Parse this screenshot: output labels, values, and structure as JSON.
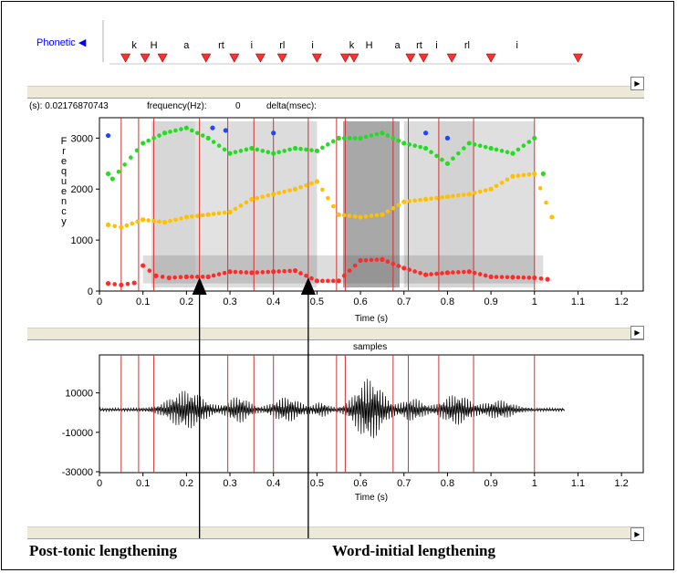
{
  "tier": {
    "label": "Phonetic",
    "segments": [
      "k",
      "H",
      "a",
      "rt",
      "i",
      "rl",
      "i",
      "k",
      "H",
      "a",
      "rt",
      "i",
      "rl",
      "i"
    ],
    "segment_times": [
      0.08,
      0.125,
      0.2,
      0.28,
      0.35,
      0.42,
      0.49,
      0.58,
      0.62,
      0.685,
      0.735,
      0.775,
      0.845,
      0.96
    ],
    "marker_times": [
      0.06,
      0.105,
      0.145,
      0.245,
      0.31,
      0.37,
      0.42,
      0.5,
      0.565,
      0.585,
      0.715,
      0.745,
      0.81,
      0.9,
      1.1
    ]
  },
  "readout": {
    "time": "(s): 0.02176870743",
    "frequency_label": "frequency(Hz):",
    "frequency_value": "0",
    "delta_label": "delta(msec):"
  },
  "spectrogram": {
    "ylabel": "Frequency",
    "yticks": [
      "0",
      "1000",
      "2000",
      "3000"
    ],
    "xticks": [
      "0",
      "0.1",
      "0.2",
      "0.3",
      "0.4",
      "0.5",
      "0.6",
      "0.7",
      "0.8",
      "0.9",
      "1",
      "1.1",
      "1.2"
    ],
    "xlabel": "Time (s)"
  },
  "waveform": {
    "title": "samples",
    "yticks": [
      "10000",
      "-10000",
      "-30000"
    ],
    "xticks": [
      "0",
      "0.1",
      "0.2",
      "0.3",
      "0.4",
      "0.5",
      "0.6",
      "0.7",
      "0.8",
      "0.9",
      "1",
      "1.1",
      "1.2"
    ],
    "xlabel": "Time (s)"
  },
  "boundaries": [
    0.05,
    0.09,
    0.125,
    0.23,
    0.295,
    0.355,
    0.4,
    0.48,
    0.545,
    0.565,
    0.675,
    0.71,
    0.78,
    0.86,
    1.0
  ],
  "formants": {
    "colors": {
      "F1": "#ff2a2a",
      "F2": "#ffc000",
      "F3": "#22dd22",
      "F4": "#2244ff"
    },
    "F1": [
      [
        0.02,
        150
      ],
      [
        0.05,
        120
      ],
      [
        0.08,
        160
      ],
      [
        0.1,
        500
      ],
      [
        0.13,
        300
      ],
      [
        0.16,
        260
      ],
      [
        0.2,
        280
      ],
      [
        0.25,
        280
      ],
      [
        0.3,
        380
      ],
      [
        0.35,
        360
      ],
      [
        0.4,
        380
      ],
      [
        0.45,
        400
      ],
      [
        0.5,
        200
      ],
      [
        0.55,
        200
      ],
      [
        0.6,
        600
      ],
      [
        0.65,
        620
      ],
      [
        0.7,
        450
      ],
      [
        0.75,
        320
      ],
      [
        0.8,
        360
      ],
      [
        0.85,
        380
      ],
      [
        0.9,
        280
      ],
      [
        0.95,
        270
      ],
      [
        1.0,
        260
      ],
      [
        1.03,
        230
      ]
    ],
    "F2": [
      [
        0.02,
        1300
      ],
      [
        0.05,
        1250
      ],
      [
        0.1,
        1400
      ],
      [
        0.15,
        1350
      ],
      [
        0.2,
        1450
      ],
      [
        0.25,
        1500
      ],
      [
        0.3,
        1550
      ],
      [
        0.35,
        1800
      ],
      [
        0.4,
        1900
      ],
      [
        0.45,
        2000
      ],
      [
        0.5,
        2150
      ],
      [
        0.55,
        1500
      ],
      [
        0.6,
        1450
      ],
      [
        0.65,
        1500
      ],
      [
        0.7,
        1750
      ],
      [
        0.75,
        1800
      ],
      [
        0.8,
        1850
      ],
      [
        0.85,
        1900
      ],
      [
        0.9,
        2000
      ],
      [
        0.95,
        2250
      ],
      [
        1.0,
        2300
      ],
      [
        1.04,
        1450
      ]
    ],
    "F3": [
      [
        0.02,
        2300
      ],
      [
        0.03,
        2200
      ],
      [
        0.1,
        2900
      ],
      [
        0.15,
        3100
      ],
      [
        0.2,
        3200
      ],
      [
        0.25,
        3000
      ],
      [
        0.3,
        2700
      ],
      [
        0.35,
        2800
      ],
      [
        0.4,
        2700
      ],
      [
        0.45,
        2800
      ],
      [
        0.5,
        2750
      ],
      [
        0.55,
        3000
      ],
      [
        0.6,
        3000
      ],
      [
        0.65,
        3100
      ],
      [
        0.7,
        2900
      ],
      [
        0.75,
        2800
      ],
      [
        0.8,
        2500
      ],
      [
        0.85,
        2900
      ],
      [
        0.9,
        2800
      ],
      [
        0.95,
        2700
      ],
      [
        1.0,
        3000
      ],
      [
        1.02,
        2300
      ]
    ],
    "F4": [
      [
        0.02,
        3050
      ],
      [
        0.26,
        3200
      ],
      [
        0.29,
        3150
      ],
      [
        0.4,
        3100
      ],
      [
        0.75,
        3100
      ],
      [
        0.8,
        3000
      ]
    ]
  },
  "annotations": {
    "left": {
      "text": "Post-tonic lengthening",
      "time": 0.23
    },
    "right": {
      "text": "Word-initial lengthening",
      "time": 0.48
    }
  }
}
